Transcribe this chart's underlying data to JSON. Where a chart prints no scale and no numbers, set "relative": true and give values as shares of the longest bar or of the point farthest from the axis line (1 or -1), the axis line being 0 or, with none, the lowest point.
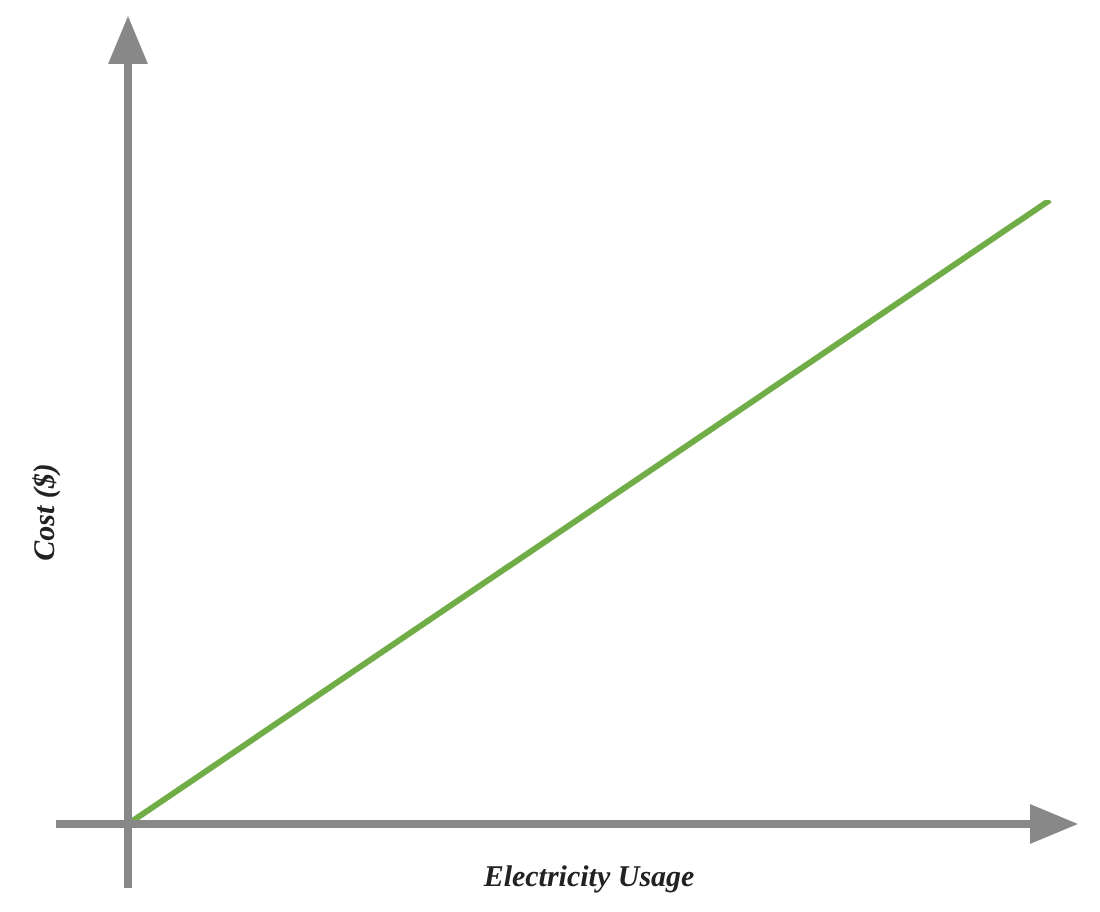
{
  "chart_data": {
    "type": "line",
    "xlabel": "Electricity Usage",
    "ylabel": "Cost ($)",
    "relative": true,
    "marker": "none",
    "categories": [
      null,
      null
    ],
    "series": [
      {
        "color": "#70ad47",
        "values": [
          0,
          1
        ]
      }
    ]
  }
}
